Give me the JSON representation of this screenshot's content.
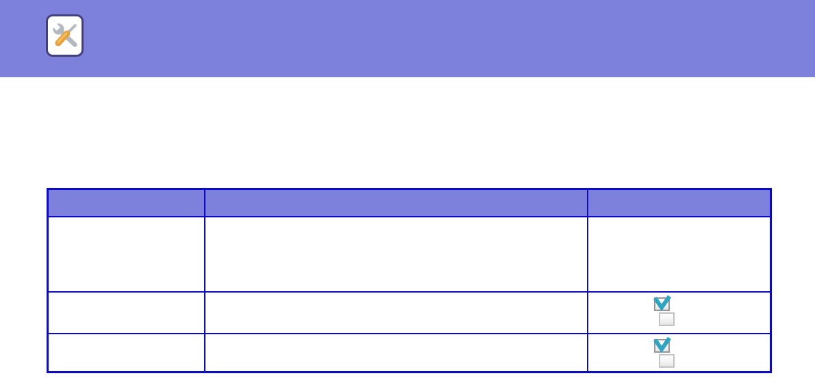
{
  "banner": {
    "background_color": "#7E81DB",
    "icon": "tools-icon"
  },
  "table": {
    "border_color": "#0B0BC6",
    "header_background_color": "#7E81DB",
    "columns": [
      "",
      "",
      ""
    ],
    "rows": [
      {
        "cells": [
          "",
          "",
          ""
        ],
        "checkboxes": []
      },
      {
        "cells": [
          "",
          "",
          ""
        ],
        "checkboxes": [
          "checked",
          "unchecked"
        ]
      },
      {
        "cells": [
          "",
          "",
          ""
        ],
        "checkboxes": [
          "checked",
          "unchecked"
        ]
      }
    ]
  },
  "checkbox": {
    "check_color": "#2FA5C4",
    "checked_icon": "checkbox-checked-icon",
    "unchecked_icon": "checkbox-unchecked-icon"
  }
}
